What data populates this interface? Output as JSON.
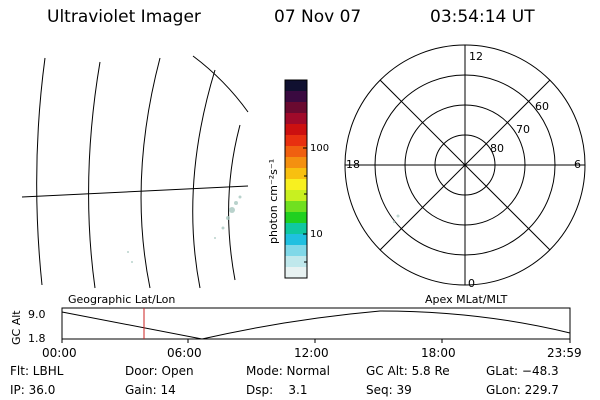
{
  "header": {
    "title": "Ultraviolet Imager",
    "date": "07 Nov 07",
    "time": "03:54:14 UT"
  },
  "colorbar": {
    "unit_label": "photon cm⁻²s⁻¹",
    "tick_labels": [
      "100",
      "10"
    ],
    "colors": [
      "#101030",
      "#3a0a40",
      "#6a0a30",
      "#a00a2a",
      "#cc1010",
      "#e83010",
      "#f06010",
      "#f49010",
      "#f8c010",
      "#f8f020",
      "#c8f020",
      "#70e020",
      "#20d020",
      "#10c8a0",
      "#20c0e0",
      "#80d8e8",
      "#c0e8ec",
      "#e8f2f2"
    ]
  },
  "polar_plot": {
    "mlt_labels": [
      "12",
      "18",
      "6",
      "0"
    ],
    "lat_labels": [
      "60",
      "70",
      "80"
    ]
  },
  "timeline": {
    "ylabel": "GC Alt",
    "y_ticks": [
      "9.0",
      "1.8"
    ],
    "left_title": "Geographic Lat/Lon",
    "right_title": "Apex MLat/MLT",
    "x_ticks": [
      "00:00",
      "06:00",
      "12:00",
      "18:00",
      "23:59"
    ]
  },
  "footer": {
    "row1": [
      "Flt: LBHL",
      "Door: Open",
      "Mode: Normal",
      "GC Alt: 5.8 Re",
      "GLat: −48.3"
    ],
    "row2": [
      "IP: 36.0",
      "Gain: 14",
      "Dsp:    3.1",
      "Seq: 39",
      "GLon: 229.7"
    ]
  },
  "colors": {
    "marker": "#cc2222",
    "emission": "#a8c8c0"
  }
}
